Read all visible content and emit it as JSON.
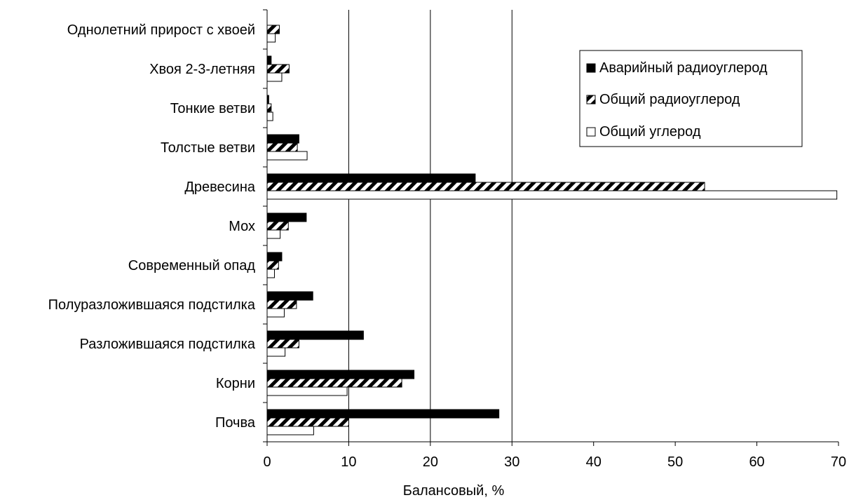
{
  "chart_data": {
    "type": "bar",
    "orientation": "horizontal",
    "title": "",
    "xlabel": "Балансовый, %",
    "ylabel": "",
    "xlim": [
      0,
      70
    ],
    "xticks": [
      0,
      10,
      20,
      30,
      40,
      50,
      60,
      70
    ],
    "grid": "vertical gridlines at 10, 20, 30",
    "legend_position": "top-right",
    "categories": [
      "Однолетний прирост с хвоей",
      "Хвоя 2-3-летняя",
      "Тонкие ветви",
      "Толстые ветви",
      "Древесина",
      "Мох",
      "Современный опад",
      "Полуразложившаяся подстилка",
      "Разложившаяся подстилка",
      "Корни",
      "Почва"
    ],
    "series": [
      {
        "name": "Аварийный радиоуглерод",
        "fill": "solid",
        "color": "#000000",
        "values": [
          0,
          0.5,
          0.2,
          3.9,
          25.5,
          4.8,
          1.8,
          5.6,
          11.8,
          18.0,
          28.4
        ]
      },
      {
        "name": "Общий радиоуглерод",
        "fill": "hatched",
        "color": "#000000",
        "values": [
          1.5,
          2.7,
          0.5,
          3.7,
          53.6,
          2.6,
          1.4,
          3.6,
          3.9,
          16.5,
          10.0
        ]
      },
      {
        "name": "Общий углерод",
        "fill": "empty",
        "color": "#ffffff",
        "values": [
          1.0,
          1.8,
          0.7,
          4.9,
          69.8,
          1.6,
          0.9,
          2.1,
          2.2,
          9.8,
          5.7
        ]
      }
    ]
  }
}
